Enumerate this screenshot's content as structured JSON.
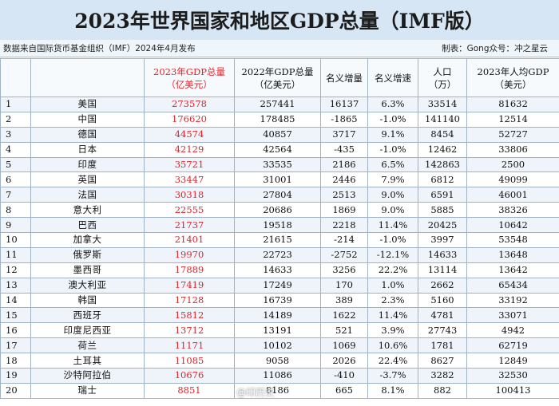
{
  "title": "2023年世界国家和地区GDP总量（IMF版）",
  "source_note": "数据来自国际货币基金组织（IMF）2024年4月发布",
  "maker_note": "制表：Gong众号：冲之星云",
  "headers": {
    "rank": "",
    "country": "",
    "gdp2023_line1": "2023年GDP总量",
    "gdp2023_line2": "（亿美元）",
    "gdp2022_line1": "2022年GDP总量",
    "gdp2022_line2": "（亿美元）",
    "nominal_increase": "名义增量",
    "nominal_growth": "名义增速",
    "population_line1": "人口",
    "population_line2": "（万）",
    "per_capita_line1": "2023年人均GDP",
    "per_capita_line2": "（美元）"
  },
  "rows": [
    {
      "rank": "1",
      "country": "美国",
      "gdp2023": "273578",
      "gdp2022": "257441",
      "increase": "16137",
      "growth": "6.3%",
      "population": "33514",
      "per_capita": "81632"
    },
    {
      "rank": "2",
      "country": "中国",
      "gdp2023": "176620",
      "gdp2022": "178485",
      "increase": "-1865",
      "growth": "-1.0%",
      "population": "141140",
      "per_capita": "12514"
    },
    {
      "rank": "3",
      "country": "德国",
      "gdp2023": "44574",
      "gdp2022": "40857",
      "increase": "3717",
      "growth": "9.1%",
      "population": "8454",
      "per_capita": "52727"
    },
    {
      "rank": "4",
      "country": "日本",
      "gdp2023": "42129",
      "gdp2022": "42564",
      "increase": "-435",
      "growth": "-1.0%",
      "population": "12462",
      "per_capita": "33806"
    },
    {
      "rank": "5",
      "country": "印度",
      "gdp2023": "35721",
      "gdp2022": "33535",
      "increase": "2186",
      "growth": "6.5%",
      "population": "142863",
      "per_capita": "2500"
    },
    {
      "rank": "6",
      "country": "英国",
      "gdp2023": "33447",
      "gdp2022": "31001",
      "increase": "2446",
      "growth": "7.9%",
      "population": "6812",
      "per_capita": "49099"
    },
    {
      "rank": "7",
      "country": "法国",
      "gdp2023": "30318",
      "gdp2022": "27804",
      "increase": "2513",
      "growth": "9.0%",
      "population": "6591",
      "per_capita": "46001"
    },
    {
      "rank": "8",
      "country": "意大利",
      "gdp2023": "22555",
      "gdp2022": "20686",
      "increase": "1869",
      "growth": "9.0%",
      "population": "5885",
      "per_capita": "38326"
    },
    {
      "rank": "9",
      "country": "巴西",
      "gdp2023": "21737",
      "gdp2022": "19518",
      "increase": "2218",
      "growth": "11.4%",
      "population": "20425",
      "per_capita": "10642"
    },
    {
      "rank": "10",
      "country": "加拿大",
      "gdp2023": "21401",
      "gdp2022": "21615",
      "increase": "-214",
      "growth": "-1.0%",
      "population": "3997",
      "per_capita": "53548"
    },
    {
      "rank": "11",
      "country": "俄罗斯",
      "gdp2023": "19970",
      "gdp2022": "22723",
      "increase": "-2752",
      "growth": "-12.1%",
      "population": "14633",
      "per_capita": "13648"
    },
    {
      "rank": "12",
      "country": "墨西哥",
      "gdp2023": "17889",
      "gdp2022": "14633",
      "increase": "3256",
      "growth": "22.2%",
      "population": "13114",
      "per_capita": "13642"
    },
    {
      "rank": "13",
      "country": "澳大利亚",
      "gdp2023": "17419",
      "gdp2022": "17249",
      "increase": "170",
      "growth": "1.0%",
      "population": "2662",
      "per_capita": "65434"
    },
    {
      "rank": "14",
      "country": "韩国",
      "gdp2023": "17128",
      "gdp2022": "16739",
      "increase": "389",
      "growth": "2.3%",
      "population": "5160",
      "per_capita": "33192"
    },
    {
      "rank": "15",
      "country": "西班牙",
      "gdp2023": "15812",
      "gdp2022": "14189",
      "increase": "1622",
      "growth": "11.4%",
      "population": "4781",
      "per_capita": "33071"
    },
    {
      "rank": "16",
      "country": "印度尼西亚",
      "gdp2023": "13712",
      "gdp2022": "13191",
      "increase": "521",
      "growth": "3.9%",
      "population": "27743",
      "per_capita": "4942"
    },
    {
      "rank": "17",
      "country": "荷兰",
      "gdp2023": "11171",
      "gdp2022": "10102",
      "increase": "1069",
      "growth": "10.6%",
      "population": "1781",
      "per_capita": "62719"
    },
    {
      "rank": "18",
      "country": "土耳其",
      "gdp2023": "11085",
      "gdp2022": "9058",
      "increase": "2026",
      "growth": "22.4%",
      "population": "8627",
      "per_capita": "12849"
    },
    {
      "rank": "19",
      "country": "沙特阿拉伯",
      "gdp2023": "10676",
      "gdp2022": "11086",
      "increase": "-410",
      "growth": "-3.7%",
      "population": "3282",
      "per_capita": "32530"
    },
    {
      "rank": "20",
      "country": "瑞士",
      "gdp2023": "8851",
      "gdp2022": "8186",
      "increase": "665",
      "growth": "8.1%",
      "population": "882",
      "per_capita": "100413"
    }
  ],
  "watermark": "@印历史",
  "colors": {
    "title_bg": "#d6e6f5",
    "accent_red": "#e0242a",
    "row_alt": "#eef4fa",
    "grid": "#9fb3c8"
  }
}
